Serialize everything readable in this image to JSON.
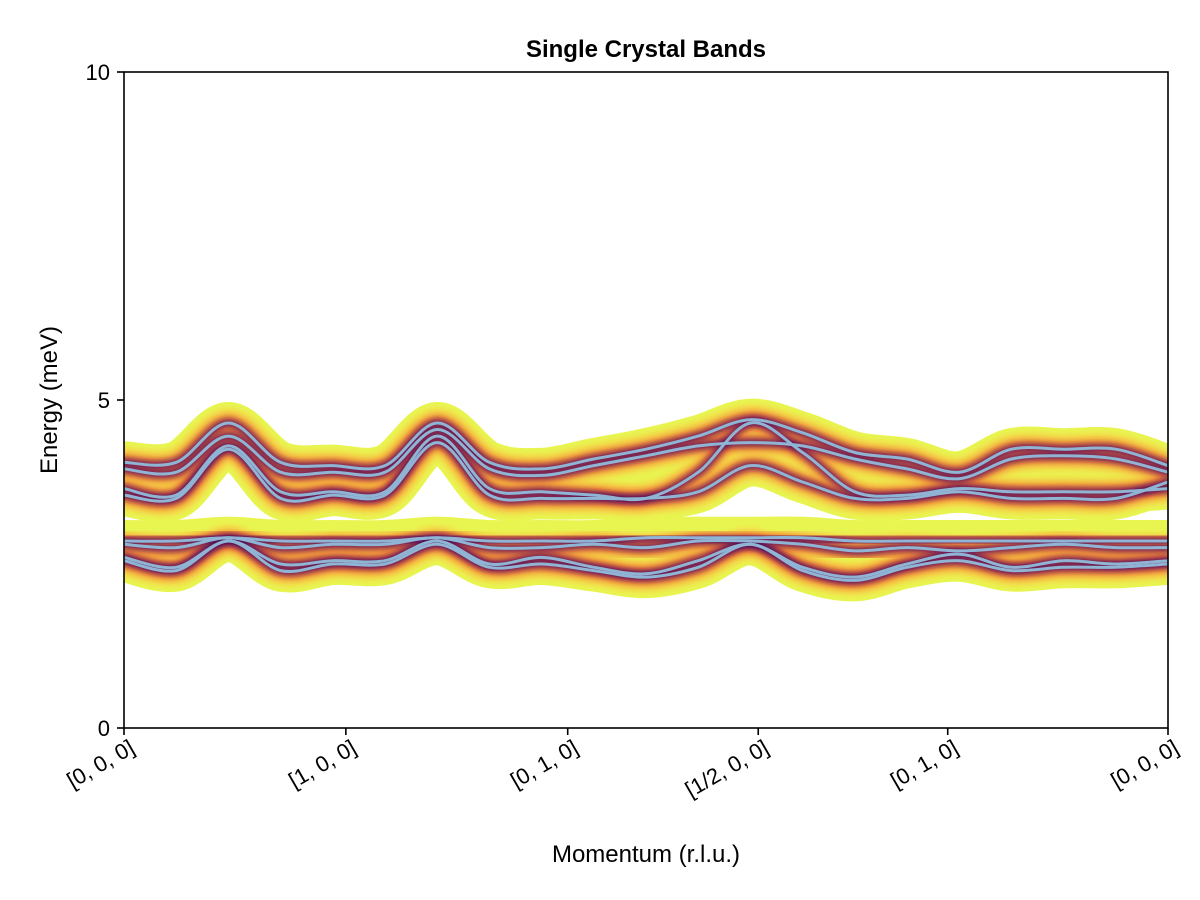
{
  "chart_data": {
    "type": "heatmap",
    "title": "Single Crystal Bands",
    "xlabel": "Momentum (r.l.u.)",
    "ylabel": "Energy (meV)",
    "ylim": [
      0,
      10
    ],
    "xlim": [
      0,
      1
    ],
    "yticks": [
      0,
      5,
      10
    ],
    "y_tick_labels": [
      "0",
      "5",
      "10"
    ],
    "x_ticks": [
      {
        "pos": 0.0,
        "label": "[0, 0, 0]"
      },
      {
        "pos": 0.2125,
        "label": "[1, 0, 0]"
      },
      {
        "pos": 0.425,
        "label": "[0, 1, 0]"
      },
      {
        "pos": 0.6075,
        "label": "[1/2, 0, 0]"
      },
      {
        "pos": 0.789,
        "label": "[0, 1, 0]"
      },
      {
        "pos": 1.0,
        "label": "[0, 0, 0]"
      }
    ],
    "grid": false,
    "colormap": "inferno-like (yellow to dark purple)",
    "band_line_color": "#8FB4D4",
    "series": [
      {
        "x": [
          0,
          0.05,
          0.1,
          0.15,
          0.2,
          0.25,
          0.3,
          0.35,
          0.4,
          0.45,
          0.5,
          0.55,
          0.6,
          0.65,
          0.7,
          0.75,
          0.8,
          0.85,
          0.9,
          0.95,
          1.0
        ],
        "values": [
          4.05,
          4.05,
          4.65,
          4.05,
          4.0,
          4.0,
          4.65,
          4.05,
          3.95,
          4.1,
          4.25,
          4.45,
          4.7,
          4.5,
          4.2,
          4.1,
          3.9,
          4.25,
          4.25,
          4.25,
          4.0
        ]
      },
      {
        "x": [
          0,
          0.05,
          0.1,
          0.15,
          0.2,
          0.25,
          0.3,
          0.35,
          0.4,
          0.45,
          0.5,
          0.55,
          0.6,
          0.65,
          0.7,
          0.75,
          0.8,
          0.85,
          0.9,
          0.95,
          1.0
        ],
        "values": [
          3.95,
          3.9,
          4.45,
          3.9,
          3.9,
          3.9,
          4.55,
          3.95,
          3.85,
          4.0,
          4.15,
          4.3,
          4.35,
          4.3,
          4.1,
          3.95,
          3.8,
          4.1,
          4.15,
          4.1,
          3.9
        ]
      },
      {
        "x": [
          0,
          0.05,
          0.1,
          0.15,
          0.2,
          0.25,
          0.3,
          0.35,
          0.4,
          0.45,
          0.5,
          0.55,
          0.6,
          0.65,
          0.7,
          0.75,
          0.8,
          0.85,
          0.9,
          0.95,
          1.0
        ],
        "values": [
          3.65,
          3.55,
          4.3,
          3.6,
          3.6,
          3.6,
          4.45,
          3.65,
          3.6,
          3.55,
          3.5,
          3.9,
          4.65,
          4.2,
          3.6,
          3.55,
          3.65,
          3.6,
          3.6,
          3.6,
          3.65
        ]
      },
      {
        "x": [
          0,
          0.05,
          0.1,
          0.15,
          0.2,
          0.25,
          0.3,
          0.35,
          0.4,
          0.45,
          0.5,
          0.55,
          0.6,
          0.65,
          0.7,
          0.75,
          0.8,
          0.85,
          0.9,
          0.95,
          1.0
        ],
        "values": [
          3.55,
          3.5,
          4.25,
          3.5,
          3.55,
          3.55,
          4.35,
          3.55,
          3.5,
          3.5,
          3.5,
          3.6,
          4.0,
          3.75,
          3.5,
          3.5,
          3.6,
          3.5,
          3.5,
          3.5,
          3.75
        ]
      },
      {
        "x": [
          0,
          0.05,
          0.1,
          0.15,
          0.2,
          0.25,
          0.3,
          0.35,
          0.4,
          0.45,
          0.5,
          0.55,
          0.6,
          0.65,
          0.7,
          0.75,
          0.8,
          0.85,
          0.9,
          0.95,
          1.0
        ],
        "values": [
          2.85,
          2.85,
          2.9,
          2.85,
          2.85,
          2.85,
          2.9,
          2.85,
          2.85,
          2.85,
          2.9,
          2.9,
          2.9,
          2.9,
          2.85,
          2.85,
          2.85,
          2.85,
          2.85,
          2.85,
          2.85
        ]
      },
      {
        "x": [
          0,
          0.05,
          0.1,
          0.15,
          0.2,
          0.25,
          0.3,
          0.35,
          0.4,
          0.45,
          0.5,
          0.55,
          0.6,
          0.65,
          0.7,
          0.75,
          0.8,
          0.85,
          0.9,
          0.95,
          1.0
        ],
        "values": [
          2.8,
          2.75,
          2.9,
          2.75,
          2.8,
          2.8,
          2.9,
          2.75,
          2.75,
          2.8,
          2.75,
          2.85,
          2.85,
          2.8,
          2.7,
          2.75,
          2.7,
          2.75,
          2.8,
          2.75,
          2.75
        ]
      },
      {
        "x": [
          0,
          0.05,
          0.1,
          0.15,
          0.2,
          0.25,
          0.3,
          0.35,
          0.4,
          0.45,
          0.5,
          0.55,
          0.6,
          0.65,
          0.7,
          0.75,
          0.8,
          0.85,
          0.9,
          0.95,
          1.0
        ],
        "values": [
          2.6,
          2.45,
          2.85,
          2.5,
          2.55,
          2.55,
          2.85,
          2.5,
          2.6,
          2.45,
          2.35,
          2.55,
          2.8,
          2.45,
          2.3,
          2.5,
          2.65,
          2.45,
          2.55,
          2.5,
          2.55
        ]
      },
      {
        "x": [
          0,
          0.05,
          0.1,
          0.15,
          0.2,
          0.25,
          0.3,
          0.35,
          0.4,
          0.45,
          0.5,
          0.55,
          0.6,
          0.65,
          0.7,
          0.75,
          0.8,
          0.85,
          0.9,
          0.95,
          1.0
        ],
        "values": [
          2.55,
          2.4,
          2.85,
          2.4,
          2.5,
          2.5,
          2.8,
          2.45,
          2.5,
          2.4,
          2.3,
          2.45,
          2.8,
          2.4,
          2.25,
          2.45,
          2.55,
          2.4,
          2.45,
          2.45,
          2.5
        ]
      }
    ]
  }
}
